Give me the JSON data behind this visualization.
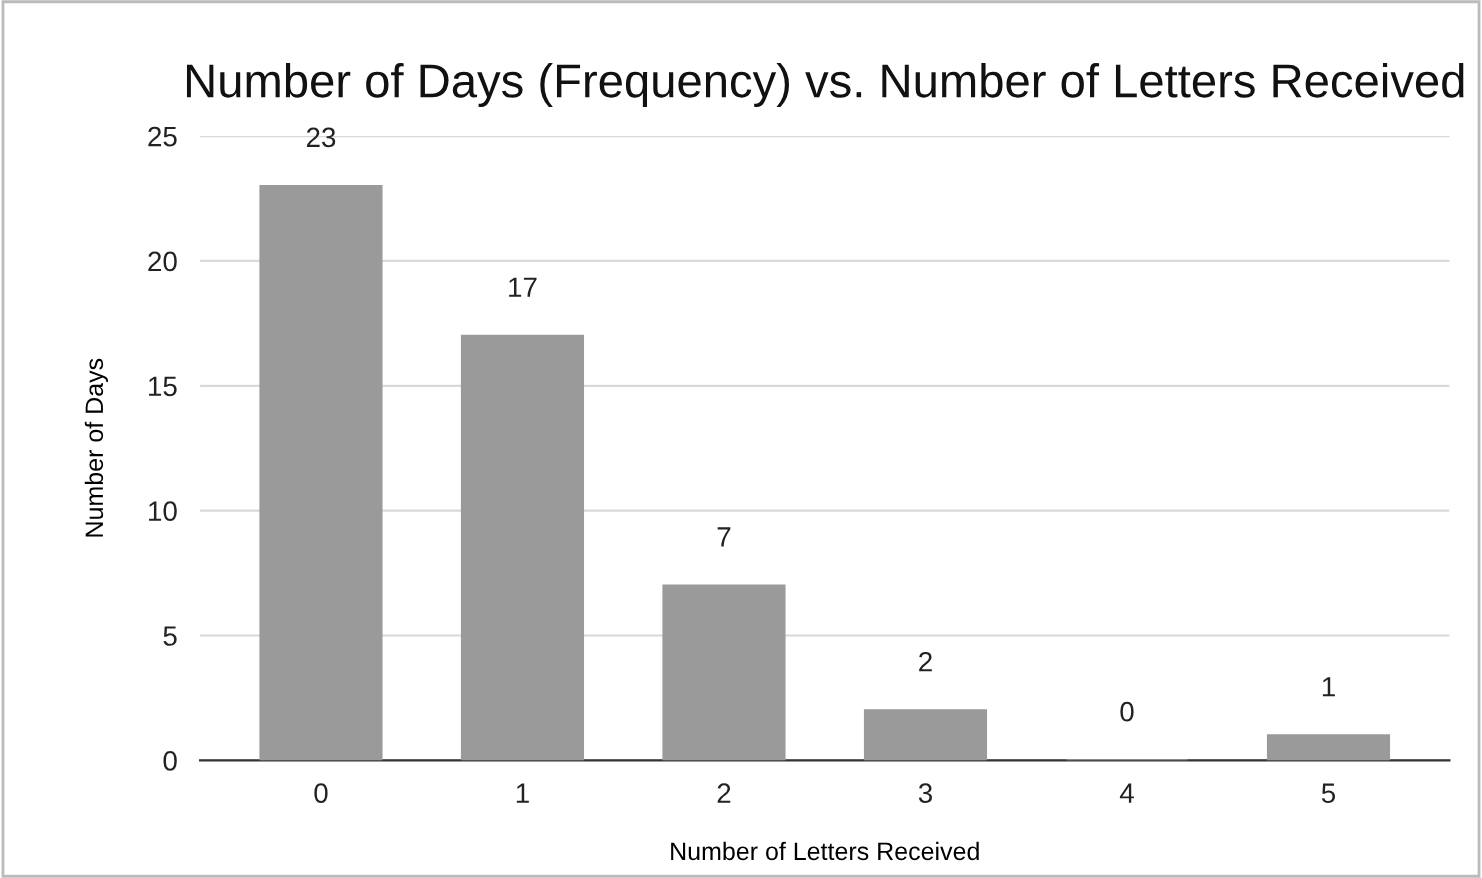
{
  "chart_data": {
    "type": "bar",
    "title": "Number of Days (Frequency) vs. Number of Letters Received",
    "xlabel": "Number of Letters Received",
    "ylabel": "Number of Days",
    "categories": [
      "0",
      "1",
      "2",
      "3",
      "4",
      "5"
    ],
    "values": [
      23,
      17,
      7,
      2,
      0,
      1
    ],
    "color": "#9a9a9a",
    "ylim": [
      0,
      25
    ],
    "yticks": [
      0,
      5,
      10,
      15,
      20,
      25
    ],
    "grid": "y",
    "data_labels": true
  }
}
